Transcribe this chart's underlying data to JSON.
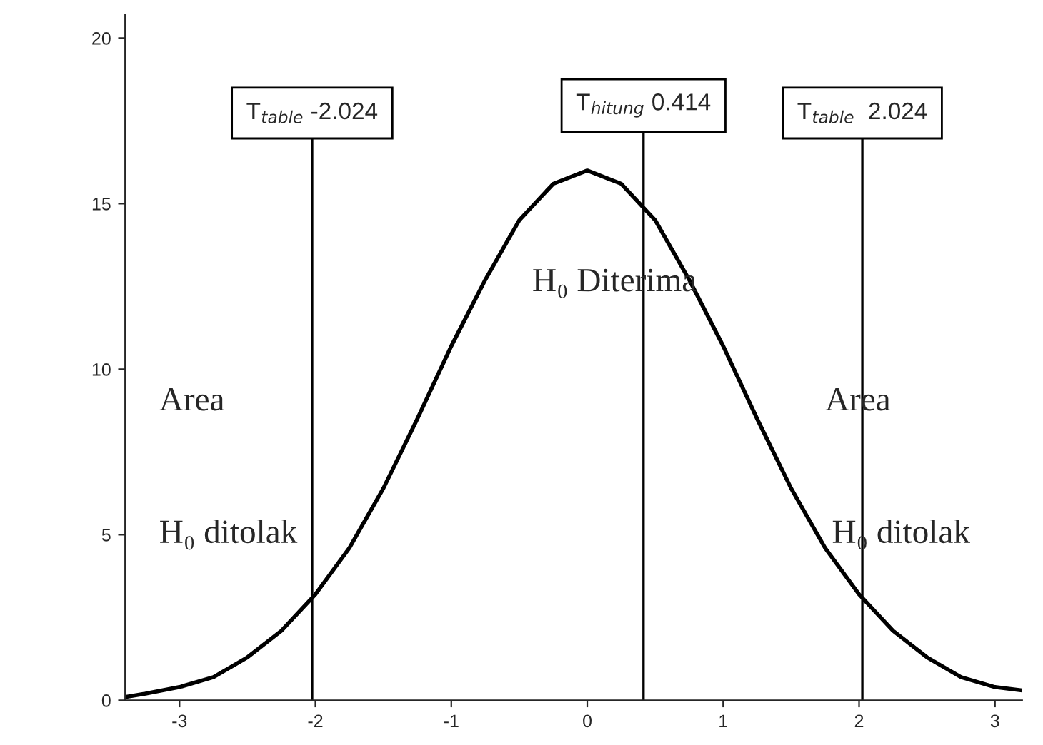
{
  "chart_data": {
    "type": "line",
    "color": "#000000",
    "x": [
      -3.4,
      -3.25,
      -3,
      -2.75,
      -2.5,
      -2.25,
      -2,
      -1.75,
      -1.5,
      -1.25,
      -1,
      -0.75,
      -0.5,
      -0.25,
      0,
      0.25,
      0.5,
      0.75,
      1,
      1.25,
      1.5,
      1.75,
      2,
      2.25,
      2.5,
      2.75,
      3,
      3.2
    ],
    "values": [
      0.1,
      0.2,
      0.4,
      0.7,
      1.3,
      2.1,
      3.2,
      4.6,
      6.4,
      8.5,
      10.7,
      12.7,
      14.5,
      15.6,
      16.0,
      15.6,
      14.5,
      12.7,
      10.7,
      8.5,
      6.4,
      4.6,
      3.2,
      2.1,
      1.3,
      0.7,
      0.4,
      0.3
    ],
    "xlim": [
      -3.4,
      3.2
    ],
    "ylim": [
      0,
      20.7
    ],
    "xticks": [
      -3,
      -2,
      -1,
      0,
      1,
      2,
      3
    ],
    "yticks": [
      0,
      5,
      10,
      15,
      20
    ],
    "grid": false,
    "marker": "none",
    "line_style": "solid",
    "ref_lines": [
      {
        "axis": "x",
        "value": -2.024,
        "label": "T$_{table}$ -2.024",
        "color": "#000000"
      },
      {
        "axis": "x",
        "value": 0.414,
        "label": "T$_{hitung}$ 0.414",
        "color": "#000000"
      },
      {
        "axis": "x",
        "value": 2.024,
        "label": "T$_{table}$  2.024",
        "color": "#000000"
      }
    ],
    "annotations": [
      "Area",
      "H₀ ditolak",
      "H₀ Diterima",
      "Area",
      "H₀ ditolak"
    ]
  }
}
